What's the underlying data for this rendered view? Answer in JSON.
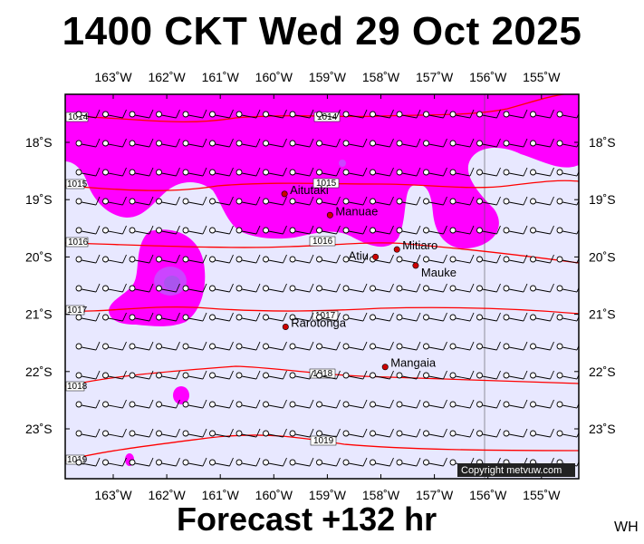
{
  "title": "1400 CKT Wed 29 Oct 2025",
  "footer": "Forecast +132 hr",
  "initials": "WH",
  "copyright": "Copyright metvuw.com",
  "lon_labels": [
    "163˚W",
    "162˚W",
    "161˚W",
    "160˚W",
    "159˚W",
    "158˚W",
    "157˚W",
    "156˚W",
    "155˚W"
  ],
  "lat_labels": [
    "18˚S",
    "19˚S",
    "20˚S",
    "21˚S",
    "22˚S",
    "23˚S"
  ],
  "places": [
    {
      "name": "Aitutaki",
      "lon": -159.8,
      "lat": -18.9
    },
    {
      "name": "Manuae",
      "lon": -158.95,
      "lat": -19.27
    },
    {
      "name": "Mitiaro",
      "lon": -157.7,
      "lat": -19.87
    },
    {
      "name": "Atiu",
      "lon": -158.1,
      "lat": -20.0
    },
    {
      "name": "Mauke",
      "lon": -157.35,
      "lat": -20.15
    },
    {
      "name": "Rarotonga",
      "lon": -159.78,
      "lat": -21.22
    },
    {
      "name": "Mangaia",
      "lon": -157.92,
      "lat": -21.92
    }
  ],
  "isobars": [
    {
      "label": "1014",
      "hpa": 1014
    },
    {
      "label": "1014",
      "hpa": 1014
    },
    {
      "label": "1015",
      "hpa": 1015
    },
    {
      "label": "1015",
      "hpa": 1015
    },
    {
      "label": "1016",
      "hpa": 1016
    },
    {
      "label": "1016",
      "hpa": 1016
    },
    {
      "label": "1017",
      "hpa": 1017
    },
    {
      "label": "1017",
      "hpa": 1017
    },
    {
      "label": "1018",
      "hpa": 1018
    },
    {
      "label": "1018",
      "hpa": 1018
    },
    {
      "label": "1019",
      "hpa": 1019
    },
    {
      "label": "1019",
      "hpa": 1019
    }
  ],
  "colors": {
    "background": "#e8e8ff",
    "rain_heavy": "#ff00ff",
    "rain_core": "#cc44ff",
    "isobar": "#ff0000",
    "station": "#cc0000",
    "frame": "#000000"
  },
  "layers": [
    "precipitation",
    "isobars",
    "wind-barbs",
    "stations",
    "graticule"
  ]
}
